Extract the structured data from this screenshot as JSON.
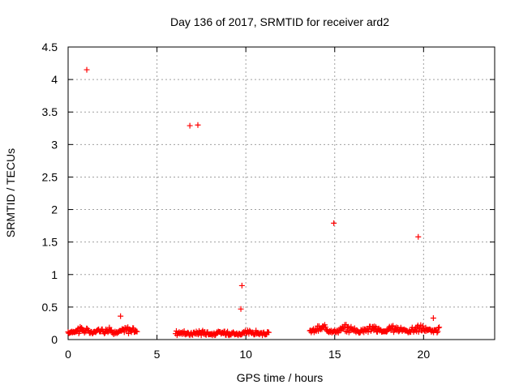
{
  "chart_data": {
    "type": "scatter",
    "title": "Day 136 of 2017, SRMTID for receiver ard2",
    "xlabel": "GPS time / hours",
    "ylabel": "SRMTID / TECUs",
    "xlim": [
      0,
      24
    ],
    "ylim": [
      0,
      4.5
    ],
    "x_ticks": [
      0,
      5,
      10,
      15,
      20
    ],
    "x_tick_labels": [
      "0",
      "5",
      "10",
      "15",
      "20"
    ],
    "y_ticks": [
      0,
      0.5,
      1,
      1.5,
      2,
      2.5,
      3,
      3.5,
      4,
      4.5
    ],
    "y_tick_labels": [
      "0",
      "0.5",
      "1",
      "1.5",
      "2",
      "2.5",
      "3",
      "3.5",
      "4",
      "4.5"
    ],
    "grid": true,
    "marker": "+",
    "series": [
      {
        "name": "SRMTID",
        "color": "#ff0000",
        "outliers": [
          {
            "x": 1.05,
            "y": 4.15
          },
          {
            "x": 6.85,
            "y": 3.29
          },
          {
            "x": 7.3,
            "y": 3.3
          },
          {
            "x": 9.72,
            "y": 0.47
          },
          {
            "x": 9.78,
            "y": 0.83
          },
          {
            "x": 14.95,
            "y": 1.79
          },
          {
            "x": 19.7,
            "y": 1.58
          },
          {
            "x": 2.95,
            "y": 0.36
          },
          {
            "x": 20.55,
            "y": 0.33
          }
        ],
        "segments": [
          {
            "x_start": 0.0,
            "x_end": 3.9,
            "base": 0.1,
            "amp": 0.1,
            "step": 0.04
          },
          {
            "x_start": 6.05,
            "x_end": 11.3,
            "base": 0.08,
            "amp": 0.06,
            "step": 0.04
          },
          {
            "x_start": 13.6,
            "x_end": 20.9,
            "base": 0.12,
            "amp": 0.1,
            "step": 0.04
          }
        ]
      }
    ]
  }
}
